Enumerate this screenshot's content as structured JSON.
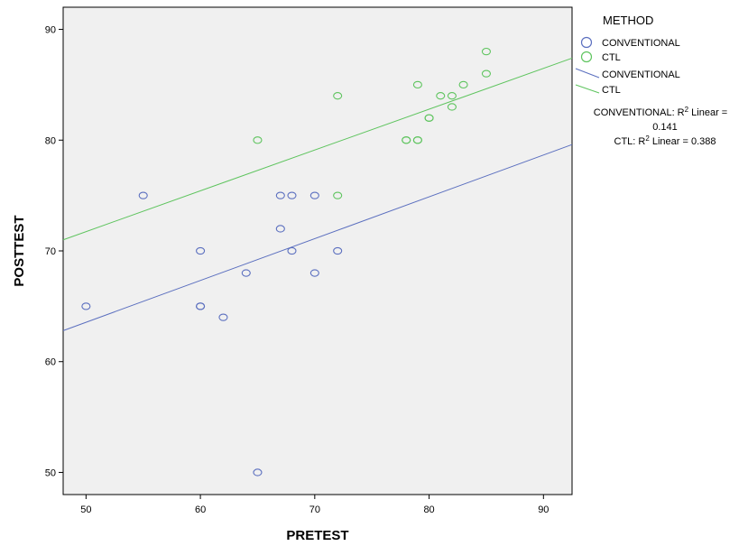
{
  "chart_data": {
    "type": "scatter",
    "xlabel": "PRETEST",
    "ylabel": "POSTTEST",
    "xlim": [
      48,
      92.5
    ],
    "ylim": [
      48,
      92
    ],
    "x_ticks": [
      50,
      60,
      70,
      80,
      90
    ],
    "y_ticks": [
      50,
      60,
      70,
      80,
      90
    ],
    "grid": false,
    "background": "#f0f0f0",
    "legend_placement": "right",
    "legend": {
      "title": "METHOD",
      "entries": [
        {
          "label": "CONVENTIONAL",
          "kind": "marker",
          "series": 0
        },
        {
          "label": "CTL",
          "kind": "marker",
          "series": 1
        },
        {
          "label": "CONVENTIONAL",
          "kind": "line",
          "series": 0
        },
        {
          "label": "CTL",
          "kind": "line",
          "series": 1
        }
      ]
    },
    "series": [
      {
        "name": "CONVENTIONAL",
        "color": "#5b6fbf",
        "points": [
          [
            50,
            65
          ],
          [
            55,
            75
          ],
          [
            60,
            70
          ],
          [
            60,
            65
          ],
          [
            60,
            65
          ],
          [
            62,
            64
          ],
          [
            64,
            68
          ],
          [
            65,
            50
          ],
          [
            67,
            75
          ],
          [
            67,
            72
          ],
          [
            68,
            75
          ],
          [
            68,
            70
          ],
          [
            70,
            75
          ],
          [
            70,
            68
          ],
          [
            72,
            70
          ]
        ],
        "fit_line": {
          "x": [
            48,
            92.5
          ],
          "y": [
            62.8,
            79.6
          ]
        },
        "r2_label": {
          "prefix": "CONVENTIONAL: R",
          "sup": "2",
          "suffix": " Linear =",
          "value": "0.141"
        }
      },
      {
        "name": "CTL",
        "color": "#5ec45e",
        "points": [
          [
            65,
            80
          ],
          [
            72,
            84
          ],
          [
            72,
            75
          ],
          [
            78,
            80
          ],
          [
            78,
            80
          ],
          [
            79,
            85
          ],
          [
            79,
            80
          ],
          [
            79,
            80
          ],
          [
            80,
            82
          ],
          [
            80,
            82
          ],
          [
            81,
            84
          ],
          [
            82,
            84
          ],
          [
            82,
            83
          ],
          [
            83,
            85
          ],
          [
            85,
            88
          ],
          [
            85,
            86
          ]
        ],
        "fit_line": {
          "x": [
            48,
            92.5
          ],
          "y": [
            71.0,
            87.4
          ]
        },
        "r2_label": {
          "prefix": "CTL: R",
          "sup": "2",
          "suffix": " Linear = 0.388"
        }
      }
    ]
  }
}
